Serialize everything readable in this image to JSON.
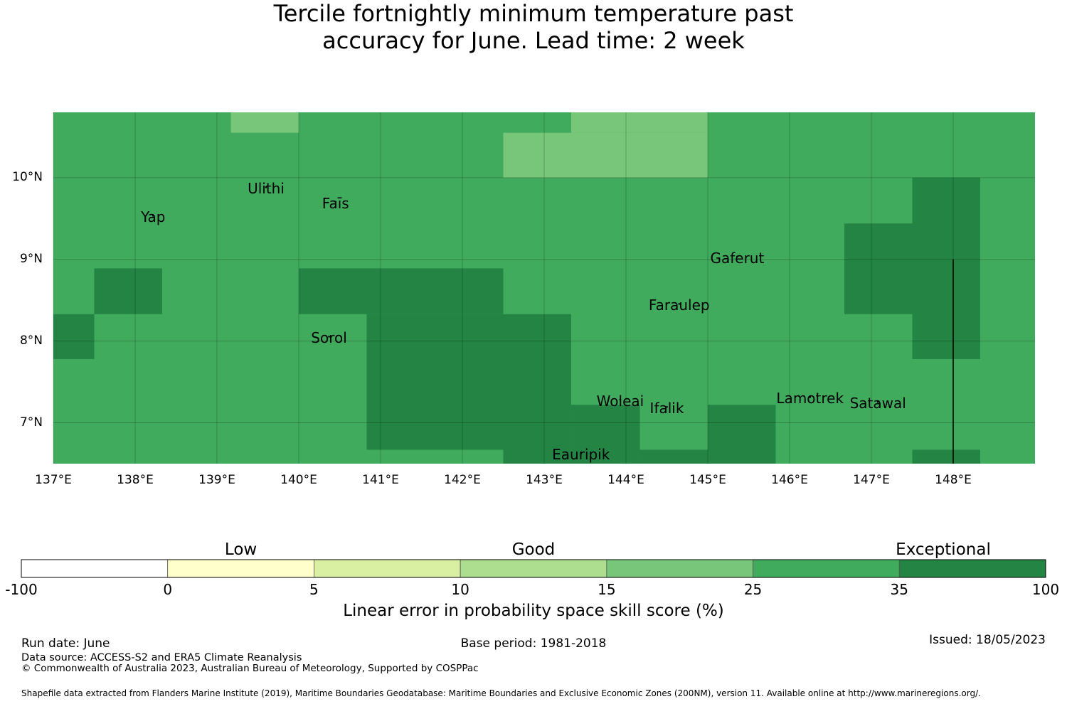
{
  "title_line1": "Tercile fortnightly minimum temperature past",
  "title_line2": "accuracy for June. Lead time: 2 week",
  "colors": {
    "-100-0": "#ffffff",
    "0-5": "#ffffcc",
    "5-10": "#d9f0a3",
    "10-15": "#addd8e",
    "15-25": "#78c679",
    "25-35": "#41ab5d",
    "35-100": "#238443"
  },
  "map": {
    "lon_range": [
      137,
      149
    ],
    "lat_range": [
      6.5,
      10.8
    ],
    "lat_ticks": [
      {
        "value": 10,
        "label": "10°N"
      },
      {
        "value": 9,
        "label": "9°N"
      },
      {
        "value": 8,
        "label": "8°N"
      },
      {
        "value": 7,
        "label": "7°N"
      }
    ],
    "lon_ticks": [
      {
        "value": 137,
        "label": "137°E"
      },
      {
        "value": 138,
        "label": "138°E"
      },
      {
        "value": 139,
        "label": "139°E"
      },
      {
        "value": 140,
        "label": "140°E"
      },
      {
        "value": 141,
        "label": "141°E"
      },
      {
        "value": 142,
        "label": "142°E"
      },
      {
        "value": 143,
        "label": "143°E"
      },
      {
        "value": 144,
        "label": "144°E"
      },
      {
        "value": 145,
        "label": "145°E"
      },
      {
        "value": 146,
        "label": "146°E"
      },
      {
        "value": 147,
        "label": "147°E"
      },
      {
        "value": 148,
        "label": "148°E"
      }
    ],
    "background_class": "25-35",
    "cells": [
      {
        "lon": [
          139.17,
          140.0
        ],
        "lat": [
          10.55,
          10.8
        ],
        "class": "15-25"
      },
      {
        "lon": [
          142.5,
          145.0
        ],
        "lat": [
          10.0,
          10.55
        ],
        "class": "15-25"
      },
      {
        "lon": [
          143.33,
          145.0
        ],
        "lat": [
          10.55,
          10.8
        ],
        "class": "15-25"
      },
      {
        "lon": [
          147.5,
          148.33
        ],
        "lat": [
          7.78,
          10.0
        ],
        "class": "35-100"
      },
      {
        "lon": [
          146.67,
          147.5
        ],
        "lat": [
          8.33,
          9.44
        ],
        "class": "35-100"
      },
      {
        "lon": [
          137.5,
          138.33
        ],
        "lat": [
          8.33,
          8.89
        ],
        "class": "35-100"
      },
      {
        "lon": [
          137.0,
          137.5
        ],
        "lat": [
          7.78,
          8.33
        ],
        "class": "35-100"
      },
      {
        "lon": [
          140.0,
          142.5
        ],
        "lat": [
          8.33,
          8.89
        ],
        "class": "35-100"
      },
      {
        "lon": [
          140.83,
          142.5
        ],
        "lat": [
          6.67,
          8.33
        ],
        "class": "35-100"
      },
      {
        "lon": [
          142.5,
          143.33
        ],
        "lat": [
          6.5,
          8.33
        ],
        "class": "35-100"
      },
      {
        "lon": [
          143.33,
          144.17
        ],
        "lat": [
          6.5,
          7.22
        ],
        "class": "35-100"
      },
      {
        "lon": [
          144.17,
          145.0
        ],
        "lat": [
          6.5,
          6.67
        ],
        "class": "35-100"
      },
      {
        "lon": [
          145.0,
          145.83
        ],
        "lat": [
          6.5,
          7.22
        ],
        "class": "35-100"
      },
      {
        "lon": [
          147.5,
          148.33
        ],
        "lat": [
          6.5,
          6.67
        ],
        "class": "35-100"
      }
    ],
    "boundary_line": {
      "lon": 148.0,
      "lat": [
        6.5,
        9.0
      ]
    },
    "places": [
      {
        "name": "Yap",
        "lon": 138.22,
        "lat": 9.5
      },
      {
        "name": "Ulithi",
        "lon": 139.6,
        "lat": 9.85
      },
      {
        "name": "Faīs",
        "lon": 140.45,
        "lat": 9.67
      },
      {
        "name": "Gaferut",
        "lon": 145.36,
        "lat": 9.0
      },
      {
        "name": "Faraulep",
        "lon": 144.65,
        "lat": 8.42
      },
      {
        "name": "Sorol",
        "lon": 140.37,
        "lat": 8.02
      },
      {
        "name": "Woleai",
        "lon": 143.93,
        "lat": 7.25
      },
      {
        "name": "Ifalik",
        "lon": 144.5,
        "lat": 7.16
      },
      {
        "name": "Lamotrek",
        "lon": 146.25,
        "lat": 7.28
      },
      {
        "name": "Satawal",
        "lon": 147.08,
        "lat": 7.22
      },
      {
        "name": "Eauripik",
        "lon": 143.45,
        "lat": 6.6
      }
    ]
  },
  "colorbar": {
    "categories": [
      "Low",
      "Good",
      "Exceptional"
    ],
    "tick_labels": [
      "-100",
      "0",
      "5",
      "10",
      "15",
      "25",
      "35",
      "100"
    ],
    "classes": [
      "-100-0",
      "0-5",
      "5-10",
      "10-15",
      "15-25",
      "25-35",
      "35-100"
    ],
    "label": "Linear error in probability space skill score (%)"
  },
  "footer": {
    "run_date": "Run date: June",
    "base_period": "Base period: 1981-2018",
    "issued": "Issued: 18/05/2023",
    "data_source": "Data source: ACCESS-S2 and ERA5 Climate Reanalysis",
    "copyright": "© Commonwealth of Australia 2023, Australian Bureau of Meteorology, Supported by COSPPac",
    "shapefile": "Shapefile data extracted from Flanders Marine Institute (2019), Maritime Boundaries Geodatabase: Maritime Boundaries and Exclusive Economic Zones (200NM), version 11. Available online at http://www.marineregions.org/."
  }
}
